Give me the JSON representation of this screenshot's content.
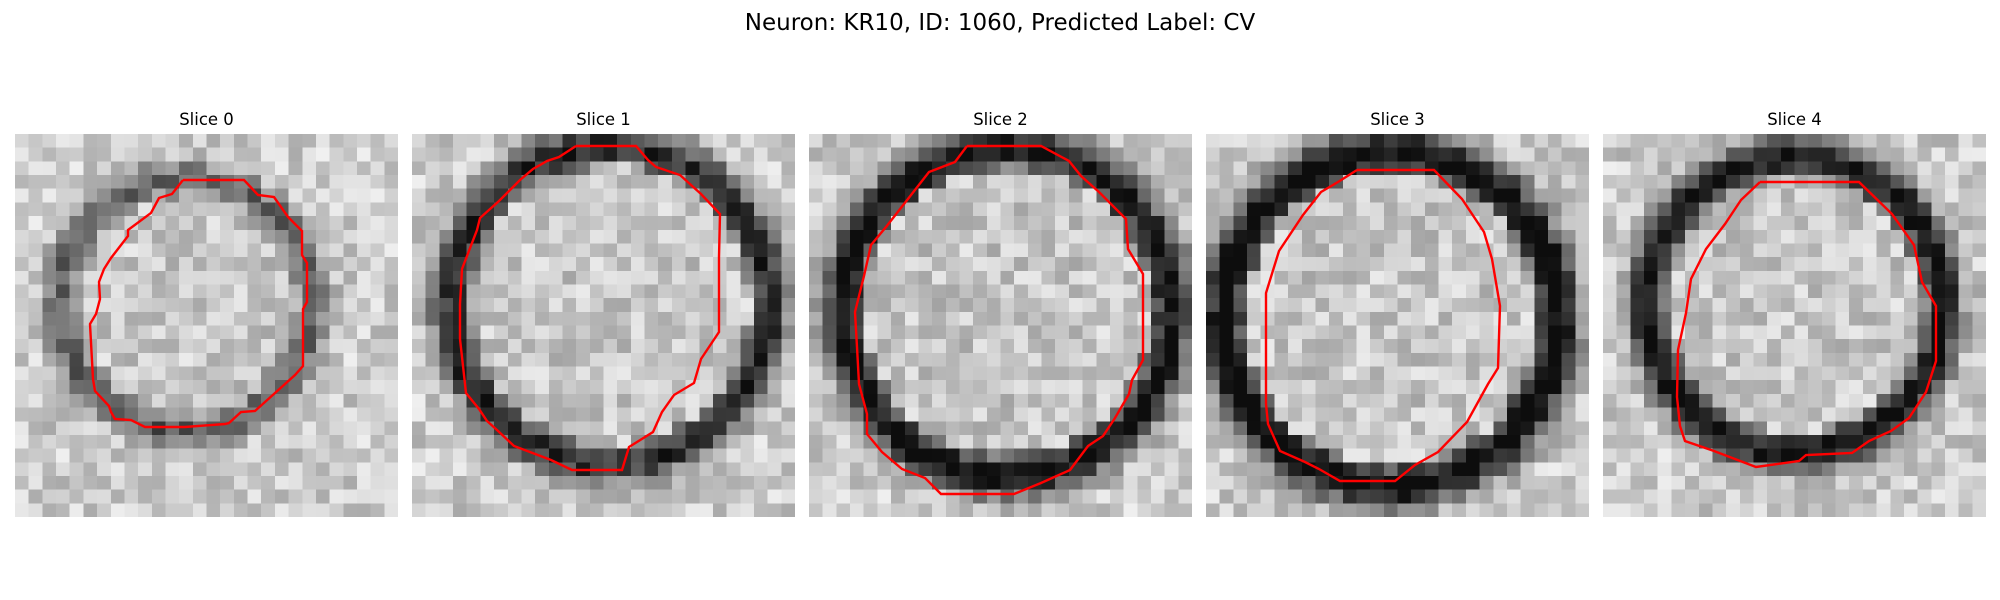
{
  "figure": {
    "title": "Neuron: KR10, ID: 1060, Predicted Label: CV"
  },
  "slices": [
    {
      "title": "Slice 0",
      "index": 0
    },
    {
      "title": "Slice 1",
      "index": 1
    },
    {
      "title": "Slice 2",
      "index": 2
    },
    {
      "title": "Slice 3",
      "index": 3
    },
    {
      "title": "Slice 4",
      "index": 4
    }
  ],
  "colors": {
    "contour": "#ff0000",
    "background": "#ffffff"
  },
  "colormap": "grayscale"
}
